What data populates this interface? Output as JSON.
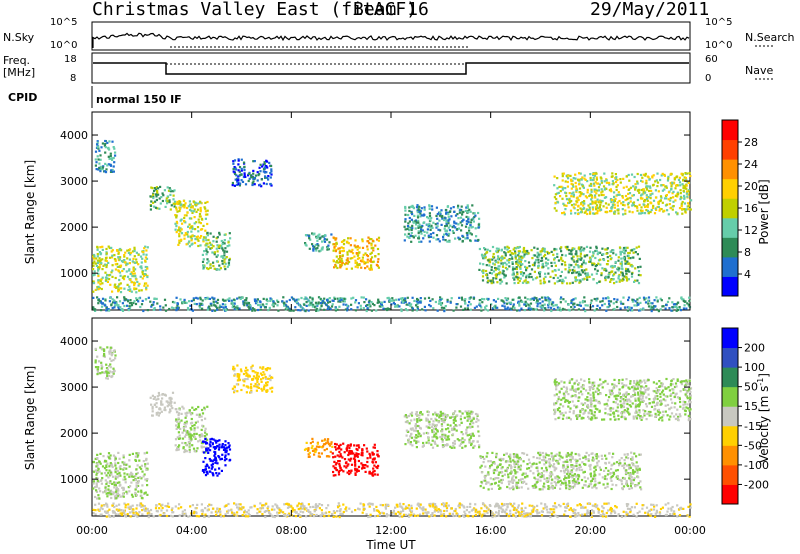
{
  "header": {
    "title": "Christmas Valley East (fitACF)",
    "beam": "Beam 16",
    "date": "29/May/2011"
  },
  "summary": {
    "nsky_label": "N.Sky",
    "nsky_ticks": [
      "10^5",
      "10^0"
    ],
    "nsearch_label": "N.Search",
    "nsearch_ticks": [
      "10^5",
      "10^0"
    ],
    "freq_label": "Freq.",
    "freq_unit": "[MHz]",
    "freq_ticks": [
      "18",
      "8"
    ],
    "nave_label": "Nave",
    "nave_ticks": [
      "60",
      "0"
    ],
    "cpid_label": "CPID",
    "cpid_value": "normal 150 IF"
  },
  "colors": {
    "power_scale": [
      "#0000ff",
      "#1f6fd0",
      "#2e8b57",
      "#66cdaa",
      "#c0d000",
      "#ffd000",
      "#ff9000",
      "#ff4000",
      "#ff0000"
    ],
    "velocity_scale": [
      "#0000ff",
      "#3050c0",
      "#2e8b57",
      "#80d040",
      "#c8c8c0",
      "#ffd000",
      "#ff9000",
      "#ff5000",
      "#ff0000"
    ]
  },
  "chart_data": [
    {
      "type": "heatmap",
      "title": "",
      "xlabel": "",
      "ylabel": "Slant Range [km]",
      "y_ticks": [
        "1000",
        "2000",
        "3000",
        "4000"
      ],
      "ylim": [
        200,
        4500
      ],
      "colorbar_label": "Power [dB]",
      "colorbar_ticks": [
        "4",
        "8",
        "12",
        "16",
        "20",
        "24",
        "28"
      ],
      "echo_regions": [
        {
          "t": [
            0.0,
            2.2
          ],
          "range": [
            600,
            1600
          ],
          "level": 20
        },
        {
          "t": [
            0.1,
            0.9
          ],
          "range": [
            3200,
            3900
          ],
          "level": 12
        },
        {
          "t": [
            2.3,
            3.3
          ],
          "range": [
            2400,
            2900
          ],
          "level": 14
        },
        {
          "t": [
            3.3,
            4.6
          ],
          "range": [
            1600,
            2600
          ],
          "level": 20
        },
        {
          "t": [
            4.4,
            5.5
          ],
          "range": [
            1100,
            1900
          ],
          "level": 16
        },
        {
          "t": [
            5.6,
            7.2
          ],
          "range": [
            2900,
            3500
          ],
          "level": 8
        },
        {
          "t": [
            8.5,
            9.6
          ],
          "range": [
            1500,
            1900
          ],
          "level": 10
        },
        {
          "t": [
            9.6,
            11.5
          ],
          "range": [
            1100,
            1800
          ],
          "level": 22
        },
        {
          "t": [
            12.5,
            15.5
          ],
          "range": [
            1700,
            2500
          ],
          "level": 12
        },
        {
          "t": [
            15.5,
            22.0
          ],
          "range": [
            800,
            1600
          ],
          "level": 14
        },
        {
          "t": [
            18.5,
            24.0
          ],
          "range": [
            2300,
            3200
          ],
          "level": 18
        },
        {
          "t": [
            0.0,
            24.0
          ],
          "range": [
            200,
            500
          ],
          "level": 10
        }
      ]
    },
    {
      "type": "heatmap",
      "title": "",
      "xlabel": "Time UT",
      "ylabel": "Slant Range [km]",
      "x_ticks": [
        "00:00",
        "04:00",
        "08:00",
        "12:00",
        "16:00",
        "20:00",
        "00:00"
      ],
      "y_ticks": [
        "1000",
        "2000",
        "3000",
        "4000"
      ],
      "ylim": [
        200,
        4500
      ],
      "colorbar_label": "Velocity [m s",
      "colorbar_label_sup": "-1",
      "colorbar_label_close": "]",
      "colorbar_ticks": [
        "200",
        "100",
        "50",
        "15",
        "-15",
        "-50",
        "-100",
        "-200"
      ],
      "echo_regions": [
        {
          "t": [
            0.0,
            2.2
          ],
          "range": [
            600,
            1600
          ],
          "velocity": 0
        },
        {
          "t": [
            0.1,
            0.9
          ],
          "range": [
            3200,
            3900
          ],
          "velocity": 0
        },
        {
          "t": [
            2.3,
            3.3
          ],
          "range": [
            2400,
            2900
          ],
          "velocity": -20
        },
        {
          "t": [
            3.3,
            4.6
          ],
          "range": [
            1600,
            2600
          ],
          "velocity": 0
        },
        {
          "t": [
            4.4,
            5.5
          ],
          "range": [
            1100,
            1900
          ],
          "velocity": 200
        },
        {
          "t": [
            5.6,
            7.2
          ],
          "range": [
            2900,
            3500
          ],
          "velocity": -40
        },
        {
          "t": [
            8.5,
            9.6
          ],
          "range": [
            1500,
            1900
          ],
          "velocity": -80
        },
        {
          "t": [
            9.6,
            11.5
          ],
          "range": [
            1100,
            1800
          ],
          "velocity": -200
        },
        {
          "t": [
            12.5,
            15.5
          ],
          "range": [
            1700,
            2500
          ],
          "velocity": 0
        },
        {
          "t": [
            15.5,
            22.0
          ],
          "range": [
            800,
            1600
          ],
          "velocity": 0
        },
        {
          "t": [
            18.5,
            24.0
          ],
          "range": [
            2300,
            3200
          ],
          "velocity": 0
        },
        {
          "t": [
            0.0,
            24.0
          ],
          "range": [
            200,
            500
          ],
          "velocity": -30
        }
      ]
    }
  ]
}
